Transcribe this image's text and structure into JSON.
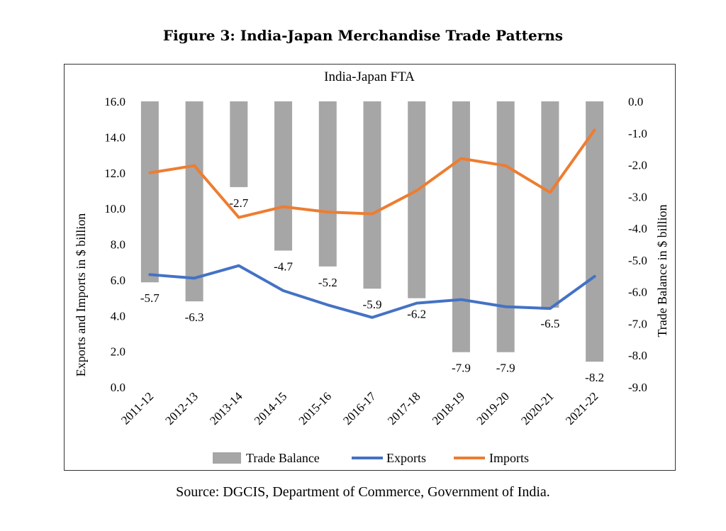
{
  "figure_title": "Figure 3: India-Japan Merchandise Trade Patterns",
  "source": "Source: DGCIS, Department of Commerce, Government of India.",
  "colors": {
    "trade_balance": "#a6a6a6",
    "exports": "#4472c4",
    "imports": "#ed7d31"
  },
  "chart_data": {
    "type": "bar",
    "title": "India-Japan FTA",
    "categories": [
      "2011-12",
      "2012-13",
      "2013-14",
      "2014-15",
      "2015-16",
      "2016-17",
      "2017-18",
      "2018-19",
      "2019-20",
      "2020-21",
      "2021-22"
    ],
    "ylabel": "Exports and Imports in $ billion",
    "ylabel_right": "Trade Balance in $ billion",
    "ylim": [
      0,
      16
    ],
    "ylim_right": [
      -9,
      0
    ],
    "yticks": [
      "16.0",
      "14.0",
      "12.0",
      "10.0",
      "8.0",
      "6.0",
      "4.0",
      "2.0",
      "0.0"
    ],
    "yticks_right": [
      "0.0",
      "-1.0",
      "-2.0",
      "-3.0",
      "-4.0",
      "-5.0",
      "-6.0",
      "-7.0",
      "-8.0",
      "-9.0"
    ],
    "legend_position": "bottom",
    "grid": false,
    "series": [
      {
        "name": "Trade Balance",
        "type": "bar",
        "axis": "right",
        "values": [
          -5.7,
          -6.3,
          -2.7,
          -4.7,
          -5.2,
          -5.9,
          -6.2,
          -7.9,
          -7.9,
          -6.5,
          -8.2
        ],
        "labels": [
          "-5.7",
          "-6.3",
          "-2.7",
          "-4.7",
          "-5.2",
          "-5.9",
          "-6.2",
          "-7.9",
          "-7.9",
          "-6.5",
          "-8.2"
        ]
      },
      {
        "name": "Exports",
        "type": "line",
        "axis": "left",
        "values": [
          6.3,
          6.1,
          6.8,
          5.4,
          4.6,
          3.9,
          4.7,
          4.9,
          4.5,
          4.4,
          6.2
        ]
      },
      {
        "name": "Imports",
        "type": "line",
        "axis": "left",
        "values": [
          12.0,
          12.4,
          9.5,
          10.1,
          9.8,
          9.7,
          11.0,
          12.8,
          12.4,
          10.9,
          14.4
        ]
      }
    ]
  }
}
